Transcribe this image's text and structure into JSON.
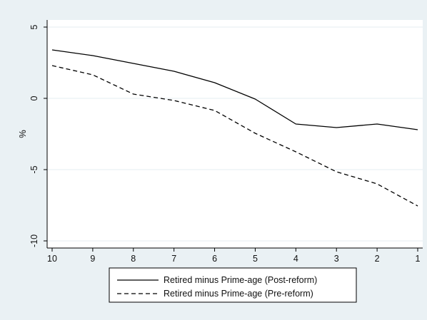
{
  "chart_data": {
    "type": "line",
    "title": "",
    "xlabel": "",
    "ylabel": "%",
    "x": [
      10,
      9,
      8,
      7,
      6,
      5,
      4,
      3,
      2,
      1
    ],
    "x_reversed": true,
    "xlim": [
      10,
      1
    ],
    "ylim": [
      -10,
      5
    ],
    "x_ticks": [
      "10",
      "9",
      "8",
      "7",
      "6",
      "5",
      "4",
      "3",
      "2",
      "1"
    ],
    "y_ticks": [
      "-10",
      "-5",
      "0",
      "5"
    ],
    "grid": "horizontal",
    "legend_position": "bottom",
    "series": [
      {
        "name": "Retired minus Prime-age (Post-reform)",
        "style": "solid",
        "color": "#000000",
        "values": [
          3.4,
          3.0,
          2.45,
          1.9,
          1.1,
          -0.05,
          -1.8,
          -2.05,
          -1.8,
          -2.2
        ]
      },
      {
        "name": "Retired minus Prime-age (Pre-reform)",
        "style": "dashed",
        "color": "#000000",
        "values": [
          2.3,
          1.65,
          0.3,
          -0.15,
          -0.85,
          -2.45,
          -3.75,
          -5.15,
          -6.0,
          -7.55
        ]
      }
    ]
  },
  "colors": {
    "outer_background": "#eaf1f4",
    "plot_background": "#ffffff",
    "gridline": "#e6edf0",
    "line": "#000000"
  }
}
